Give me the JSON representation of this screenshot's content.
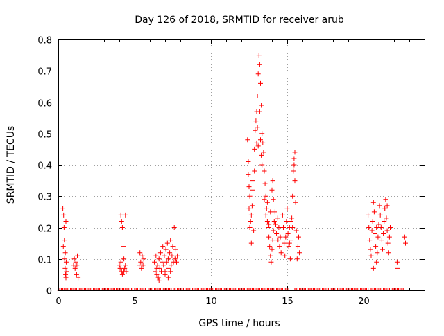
{
  "chart_data": {
    "type": "scatter",
    "title": "Day 126 of 2018, SRMTID for receiver arub",
    "xlabel": "GPS time / hours",
    "ylabel": "SRMTID / TECUs",
    "xlim": [
      0,
      24
    ],
    "ylim": [
      0,
      0.8
    ],
    "grid": true,
    "marker": "+",
    "xticks": [
      0,
      5,
      10,
      15,
      20
    ],
    "yticks": [
      0,
      0.1,
      0.2,
      0.3,
      0.4,
      0.5,
      0.6,
      0.7,
      0.8
    ],
    "xtick_labels": [
      "0",
      "5",
      "10",
      "15",
      "20"
    ],
    "ytick_labels": [
      "0",
      "0.1",
      "0.2",
      "0.3",
      "0.4",
      "0.5",
      "0.6",
      "0.7",
      "0.8"
    ],
    "series": [
      {
        "name": "SRMTID",
        "color": "#ff0000",
        "points": [
          [
            0.3,
            0.26
          ],
          [
            0.35,
            0.24
          ],
          [
            0.38,
            0.2
          ],
          [
            0.4,
            0.16
          ],
          [
            0.42,
            0.1
          ],
          [
            0.45,
            0.07
          ],
          [
            0.48,
            0.05
          ],
          [
            0.5,
            0.04
          ],
          [
            0.52,
            0.09
          ],
          [
            0.55,
            0.06
          ],
          [
            0.33,
            0.14
          ],
          [
            0.46,
            0.12
          ],
          [
            0.5,
            0.22
          ],
          [
            1.0,
            0.08
          ],
          [
            1.05,
            0.1
          ],
          [
            1.1,
            0.07
          ],
          [
            1.15,
            0.09
          ],
          [
            1.2,
            0.05
          ],
          [
            1.25,
            0.11
          ],
          [
            1.3,
            0.04
          ],
          [
            1.22,
            0.08
          ],
          [
            4.1,
            0.24
          ],
          [
            4.15,
            0.22
          ],
          [
            4.2,
            0.2
          ],
          [
            4.25,
            0.14
          ],
          [
            4.3,
            0.1
          ],
          [
            4.0,
            0.08
          ],
          [
            4.05,
            0.07
          ],
          [
            4.1,
            0.09
          ],
          [
            4.15,
            0.06
          ],
          [
            4.2,
            0.05
          ],
          [
            4.3,
            0.06
          ],
          [
            4.35,
            0.07
          ],
          [
            4.4,
            0.08
          ],
          [
            4.45,
            0.06
          ],
          [
            4.4,
            0.24
          ],
          [
            5.3,
            0.08
          ],
          [
            5.35,
            0.12
          ],
          [
            5.4,
            0.09
          ],
          [
            5.45,
            0.07
          ],
          [
            5.5,
            0.11
          ],
          [
            5.55,
            0.08
          ],
          [
            5.6,
            0.1
          ],
          [
            6.3,
            0.09
          ],
          [
            6.35,
            0.06
          ],
          [
            6.4,
            0.11
          ],
          [
            6.45,
            0.05
          ],
          [
            6.5,
            0.08
          ],
          [
            6.55,
            0.04
          ],
          [
            6.6,
            0.1
          ],
          [
            6.65,
            0.07
          ],
          [
            6.7,
            0.12
          ],
          [
            6.75,
            0.06
          ],
          [
            6.8,
            0.09
          ],
          [
            6.85,
            0.14
          ],
          [
            6.9,
            0.08
          ],
          [
            6.95,
            0.11
          ],
          [
            7.0,
            0.06
          ],
          [
            7.05,
            0.13
          ],
          [
            7.1,
            0.09
          ],
          [
            7.15,
            0.15
          ],
          [
            7.2,
            0.1
          ],
          [
            7.25,
            0.07
          ],
          [
            7.3,
            0.12
          ],
          [
            7.35,
            0.16
          ],
          [
            7.4,
            0.08
          ],
          [
            7.45,
            0.11
          ],
          [
            7.5,
            0.14
          ],
          [
            7.55,
            0.09
          ],
          [
            7.6,
            0.2
          ],
          [
            7.65,
            0.1
          ],
          [
            7.7,
            0.13
          ],
          [
            7.75,
            0.09
          ],
          [
            7.8,
            0.11
          ],
          [
            7.0,
            0.05
          ],
          [
            6.45,
            0.07
          ],
          [
            7.2,
            0.04
          ],
          [
            6.6,
            0.03
          ],
          [
            7.35,
            0.06
          ],
          [
            12.4,
            0.48
          ],
          [
            12.45,
            0.41
          ],
          [
            12.5,
            0.33
          ],
          [
            12.55,
            0.3
          ],
          [
            12.6,
            0.22
          ],
          [
            12.65,
            0.15
          ],
          [
            12.7,
            0.27
          ],
          [
            12.75,
            0.35
          ],
          [
            12.8,
            0.19
          ],
          [
            12.85,
            0.45
          ],
          [
            12.9,
            0.51
          ],
          [
            12.95,
            0.54
          ],
          [
            13.0,
            0.57
          ],
          [
            13.05,
            0.62
          ],
          [
            13.1,
            0.69
          ],
          [
            13.15,
            0.75
          ],
          [
            13.2,
            0.72
          ],
          [
            13.25,
            0.66
          ],
          [
            13.3,
            0.59
          ],
          [
            13.35,
            0.5
          ],
          [
            13.4,
            0.47
          ],
          [
            13.45,
            0.44
          ],
          [
            13.5,
            0.38
          ],
          [
            13.55,
            0.34
          ],
          [
            13.6,
            0.3
          ],
          [
            13.65,
            0.26
          ],
          [
            13.7,
            0.22
          ],
          [
            13.75,
            0.2
          ],
          [
            13.8,
            0.17
          ],
          [
            13.85,
            0.14
          ],
          [
            13.9,
            0.11
          ],
          [
            13.95,
            0.09
          ],
          [
            14.0,
            0.13
          ],
          [
            14.05,
            0.16
          ],
          [
            14.1,
            0.19
          ],
          [
            14.15,
            0.22
          ],
          [
            14.2,
            0.25
          ],
          [
            14.25,
            0.21
          ],
          [
            14.3,
            0.18
          ],
          [
            14.35,
            0.23
          ],
          [
            14.4,
            0.16
          ],
          [
            14.45,
            0.2
          ],
          [
            14.5,
            0.14
          ],
          [
            14.55,
            0.17
          ],
          [
            14.6,
            0.12
          ],
          [
            12.45,
            0.37
          ],
          [
            12.5,
            0.26
          ],
          [
            12.55,
            0.2
          ],
          [
            12.65,
            0.24
          ],
          [
            12.75,
            0.32
          ],
          [
            12.85,
            0.38
          ],
          [
            13.0,
            0.47
          ],
          [
            13.05,
            0.52
          ],
          [
            13.1,
            0.46
          ],
          [
            13.2,
            0.57
          ],
          [
            13.25,
            0.48
          ],
          [
            13.3,
            0.43
          ],
          [
            13.35,
            0.4
          ],
          [
            13.5,
            0.29
          ],
          [
            13.6,
            0.24
          ],
          [
            13.7,
            0.28
          ],
          [
            13.8,
            0.21
          ],
          [
            13.9,
            0.25
          ],
          [
            14.0,
            0.32
          ],
          [
            14.05,
            0.35
          ],
          [
            14.1,
            0.29
          ],
          [
            14.7,
            0.24
          ],
          [
            14.75,
            0.2
          ],
          [
            14.8,
            0.15
          ],
          [
            14.85,
            0.11
          ],
          [
            14.9,
            0.17
          ],
          [
            14.95,
            0.22
          ],
          [
            15.0,
            0.26
          ],
          [
            15.05,
            0.18
          ],
          [
            15.1,
            0.14
          ],
          [
            15.15,
            0.2
          ],
          [
            15.2,
            0.1
          ],
          [
            15.25,
            0.16
          ],
          [
            15.3,
            0.23
          ],
          [
            15.35,
            0.3
          ],
          [
            15.4,
            0.38
          ],
          [
            15.45,
            0.42
          ],
          [
            15.5,
            0.35
          ],
          [
            15.55,
            0.28
          ],
          [
            15.6,
            0.19
          ],
          [
            15.65,
            0.1
          ],
          [
            15.7,
            0.14
          ],
          [
            15.75,
            0.17
          ],
          [
            15.8,
            0.12
          ],
          [
            15.5,
            0.44
          ],
          [
            15.45,
            0.4
          ],
          [
            15.35,
            0.2
          ],
          [
            15.25,
            0.22
          ],
          [
            15.15,
            0.15
          ],
          [
            20.3,
            0.24
          ],
          [
            20.35,
            0.2
          ],
          [
            20.4,
            0.16
          ],
          [
            20.45,
            0.13
          ],
          [
            20.5,
            0.11
          ],
          [
            20.55,
            0.19
          ],
          [
            20.6,
            0.22
          ],
          [
            20.65,
            0.28
          ],
          [
            20.7,
            0.25
          ],
          [
            20.75,
            0.18
          ],
          [
            20.8,
            0.14
          ],
          [
            20.85,
            0.09
          ],
          [
            20.9,
            0.12
          ],
          [
            20.95,
            0.17
          ],
          [
            21.0,
            0.21
          ],
          [
            21.05,
            0.27
          ],
          [
            21.1,
            0.24
          ],
          [
            21.15,
            0.2
          ],
          [
            21.2,
            0.16
          ],
          [
            21.25,
            0.13
          ],
          [
            21.3,
            0.18
          ],
          [
            21.35,
            0.22
          ],
          [
            21.4,
            0.26
          ],
          [
            21.45,
            0.29
          ],
          [
            21.5,
            0.23
          ],
          [
            21.55,
            0.19
          ],
          [
            21.6,
            0.15
          ],
          [
            21.65,
            0.12
          ],
          [
            21.7,
            0.17
          ],
          [
            21.75,
            0.2
          ],
          [
            22.2,
            0.09
          ],
          [
            22.25,
            0.07
          ],
          [
            22.7,
            0.17
          ],
          [
            22.75,
            0.15
          ],
          [
            20.65,
            0.07
          ],
          [
            21.35,
            0.26
          ],
          [
            21.55,
            0.27
          ],
          [
            20.85,
            0.2
          ]
        ]
      }
    ],
    "zero_runs": [
      [
        0.1,
        1.6
      ],
      [
        1.7,
        3.9
      ],
      [
        4.0,
        4.8
      ],
      [
        5.0,
        5.7
      ],
      [
        5.9,
        6.9
      ],
      [
        7.0,
        7.4
      ],
      [
        7.6,
        15.1
      ],
      [
        15.5,
        20.3
      ],
      [
        20.5,
        22.6
      ]
    ]
  }
}
